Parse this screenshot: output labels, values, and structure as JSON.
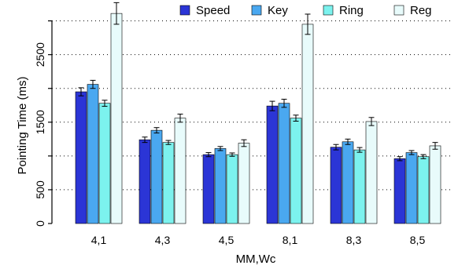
{
  "chart_data": {
    "type": "bar",
    "title": "",
    "xlabel": "MM,Wc",
    "ylabel": "Pointing Time (ms)",
    "ylim": [
      0,
      3100
    ],
    "yticks": [
      0,
      500,
      1000,
      1500,
      2000,
      2500,
      3000
    ],
    "ytick_labels": [
      "0",
      "500",
      "",
      "1500",
      "",
      "2500",
      ""
    ],
    "grid": true,
    "legend_position": "top",
    "categories": [
      "4,1",
      "4,3",
      "4,5",
      "8,1",
      "8,3",
      "8,5"
    ],
    "series": [
      {
        "name": "Speed",
        "color": "#2b35d6",
        "values": [
          1950,
          1240,
          1020,
          1740,
          1130,
          960
        ],
        "errors": [
          60,
          40,
          30,
          70,
          40,
          30
        ]
      },
      {
        "name": "Key",
        "color": "#4aa8f0",
        "values": [
          2060,
          1380,
          1110,
          1780,
          1210,
          1050
        ],
        "errors": [
          60,
          40,
          30,
          60,
          40,
          30
        ]
      },
      {
        "name": "Ring",
        "color": "#7cf2ee",
        "values": [
          1780,
          1200,
          1020,
          1560,
          1090,
          990
        ],
        "errors": [
          45,
          30,
          25,
          45,
          35,
          30
        ]
      },
      {
        "name": "Reg",
        "color": "#e8fbfb",
        "values": [
          3110,
          1560,
          1190,
          2950,
          1510,
          1150
        ],
        "errors": [
          160,
          60,
          50,
          150,
          60,
          50
        ]
      }
    ]
  }
}
